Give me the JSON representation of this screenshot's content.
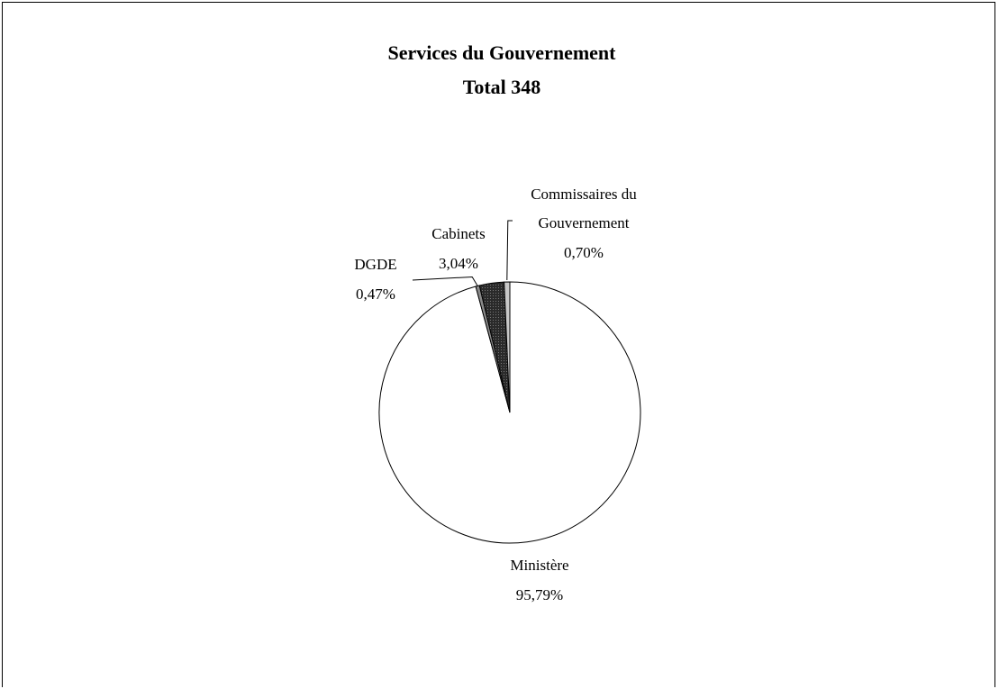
{
  "chart_data": {
    "type": "pie",
    "title": "Services du Gouvernement",
    "subtitle": "Total 348",
    "slices": [
      {
        "name": "Ministère",
        "value": 95.79,
        "label": "95,79%",
        "fill": "#ffffff",
        "pattern": "none"
      },
      {
        "name": "DGDE",
        "value": 0.47,
        "label": "0,47%",
        "fill": "#8a8a8a",
        "pattern": "none"
      },
      {
        "name": "Cabinets",
        "value": 3.04,
        "label": "3,04%",
        "fill": "#3a3a3a",
        "pattern": "dots"
      },
      {
        "name": "Commissaires du Gouvernement",
        "name_lines": [
          "Commissaires du",
          "Gouvernement"
        ],
        "value": 0.7,
        "label": "0,70%",
        "fill": "#c8c8c8",
        "pattern": "none"
      }
    ],
    "legend": "none"
  }
}
